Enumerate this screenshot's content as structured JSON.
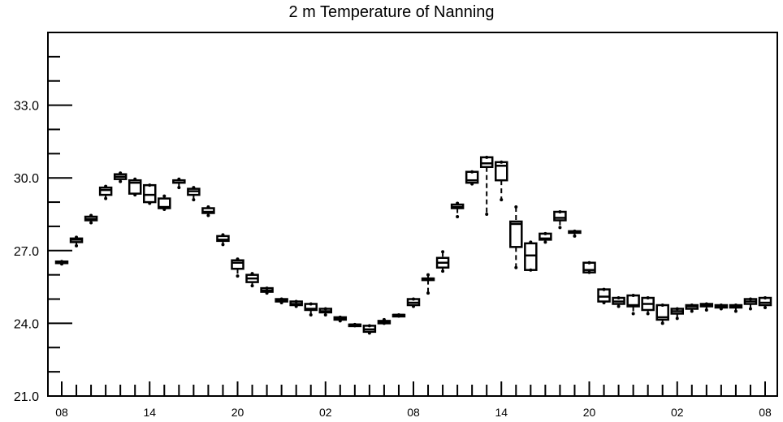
{
  "chart_data": {
    "type": "box",
    "title": "2 m Temperature of Nanning",
    "xlabel": "",
    "ylabel": "",
    "ylim": [
      21.0,
      36.0
    ],
    "yticks": [
      21.0,
      24.0,
      27.0,
      30.0,
      33.0
    ],
    "ytick_labels": [
      "21.0",
      "24.0",
      "27.0",
      "30.0",
      "33.0"
    ],
    "xtick_labels": [
      "08",
      "14",
      "20",
      "02",
      "08",
      "14",
      "20",
      "02",
      "08"
    ],
    "grid": false,
    "boxes": [
      {
        "hour": 0,
        "min": 26.45,
        "q1": 26.5,
        "median": 26.5,
        "q3": 26.55,
        "max": 26.55
      },
      {
        "hour": 1,
        "min": 27.2,
        "q1": 27.35,
        "median": 27.45,
        "q3": 27.5,
        "max": 27.55
      },
      {
        "hour": 2,
        "min": 28.15,
        "q1": 28.25,
        "median": 28.3,
        "q3": 28.4,
        "max": 28.45
      },
      {
        "hour": 3,
        "min": 29.15,
        "q1": 29.3,
        "median": 29.5,
        "q3": 29.6,
        "max": 29.65
      },
      {
        "hour": 4,
        "min": 29.85,
        "q1": 29.95,
        "median": 30.05,
        "q3": 30.15,
        "max": 30.2
      },
      {
        "hour": 5,
        "min": 29.3,
        "q1": 29.35,
        "median": 29.8,
        "q3": 29.9,
        "max": 29.95
      },
      {
        "hour": 6,
        "min": 28.95,
        "q1": 29.0,
        "median": 29.3,
        "q3": 29.7,
        "max": 29.7
      },
      {
        "hour": 7,
        "min": 28.7,
        "q1": 28.75,
        "median": 28.8,
        "q3": 29.15,
        "max": 29.25
      },
      {
        "hour": 8,
        "min": 29.6,
        "q1": 29.8,
        "median": 29.9,
        "q3": 29.9,
        "max": 29.95
      },
      {
        "hour": 9,
        "min": 29.1,
        "q1": 29.3,
        "median": 29.45,
        "q3": 29.55,
        "max": 29.6
      },
      {
        "hour": 10,
        "min": 28.45,
        "q1": 28.55,
        "median": 28.6,
        "q3": 28.75,
        "max": 28.8
      },
      {
        "hour": 11,
        "min": 27.25,
        "q1": 27.4,
        "median": 27.45,
        "q3": 27.6,
        "max": 27.65
      },
      {
        "hour": 12,
        "min": 25.95,
        "q1": 26.25,
        "median": 26.5,
        "q3": 26.6,
        "max": 26.65
      },
      {
        "hour": 13,
        "min": 25.55,
        "q1": 25.7,
        "median": 25.85,
        "q3": 26.0,
        "max": 26.05
      },
      {
        "hour": 14,
        "min": 25.25,
        "q1": 25.3,
        "median": 25.35,
        "q3": 25.45,
        "max": 25.45
      },
      {
        "hour": 15,
        "min": 24.85,
        "q1": 24.9,
        "median": 24.95,
        "q3": 25.0,
        "max": 25.0
      },
      {
        "hour": 16,
        "min": 24.7,
        "q1": 24.75,
        "median": 24.8,
        "q3": 24.9,
        "max": 24.9
      },
      {
        "hour": 17,
        "min": 24.35,
        "q1": 24.55,
        "median": 24.6,
        "q3": 24.8,
        "max": 24.8
      },
      {
        "hour": 18,
        "min": 24.35,
        "q1": 24.45,
        "median": 24.5,
        "q3": 24.6,
        "max": 24.6
      },
      {
        "hour": 19,
        "min": 24.1,
        "q1": 24.15,
        "median": 24.2,
        "q3": 24.25,
        "max": 24.25
      },
      {
        "hour": 20,
        "min": 23.9,
        "q1": 23.9,
        "median": 23.95,
        "q3": 23.95,
        "max": 23.95
      },
      {
        "hour": 21,
        "min": 23.6,
        "q1": 23.65,
        "median": 23.75,
        "q3": 23.9,
        "max": 23.9
      },
      {
        "hour": 22,
        "min": 24.0,
        "q1": 24.0,
        "median": 24.05,
        "q3": 24.1,
        "max": 24.15
      },
      {
        "hour": 23,
        "min": 24.3,
        "q1": 24.3,
        "median": 24.35,
        "q3": 24.35,
        "max": 24.35
      },
      {
        "hour": 24,
        "min": 24.7,
        "q1": 24.75,
        "median": 24.85,
        "q3": 25.0,
        "max": 25.0
      },
      {
        "hour": 25,
        "min": 25.25,
        "q1": 25.8,
        "median": 25.85,
        "q3": 25.85,
        "max": 26.0
      },
      {
        "hour": 26,
        "min": 26.15,
        "q1": 26.3,
        "median": 26.5,
        "q3": 26.7,
        "max": 26.95
      },
      {
        "hour": 27,
        "min": 28.4,
        "q1": 28.75,
        "median": 28.8,
        "q3": 28.9,
        "max": 28.95
      },
      {
        "hour": 28,
        "min": 29.75,
        "q1": 29.8,
        "median": 29.9,
        "q3": 30.25,
        "max": 30.25
      },
      {
        "hour": 29,
        "min": 28.5,
        "q1": 30.45,
        "median": 30.6,
        "q3": 30.85,
        "max": 30.85
      },
      {
        "hour": 30,
        "min": 29.1,
        "q1": 29.9,
        "median": 30.5,
        "q3": 30.65,
        "max": 30.65
      },
      {
        "hour": 31,
        "min": 26.3,
        "q1": 27.15,
        "median": 28.1,
        "q3": 28.2,
        "max": 28.8
      },
      {
        "hour": 32,
        "min": 26.2,
        "q1": 26.2,
        "median": 26.8,
        "q3": 27.3,
        "max": 27.35
      },
      {
        "hour": 33,
        "min": 27.35,
        "q1": 27.45,
        "median": 27.5,
        "q3": 27.7,
        "max": 27.7
      },
      {
        "hour": 34,
        "min": 27.95,
        "q1": 28.25,
        "median": 28.35,
        "q3": 28.6,
        "max": 28.6
      },
      {
        "hour": 35,
        "min": 27.6,
        "q1": 27.75,
        "median": 27.75,
        "q3": 27.8,
        "max": 27.8
      },
      {
        "hour": 36,
        "min": 26.1,
        "q1": 26.1,
        "median": 26.2,
        "q3": 26.5,
        "max": 26.5
      },
      {
        "hour": 37,
        "min": 24.85,
        "q1": 24.9,
        "median": 25.1,
        "q3": 25.4,
        "max": 25.4
      },
      {
        "hour": 38,
        "min": 24.7,
        "q1": 24.8,
        "median": 24.9,
        "q3": 25.05,
        "max": 25.05
      },
      {
        "hour": 39,
        "min": 24.4,
        "q1": 24.7,
        "median": 24.75,
        "q3": 25.15,
        "max": 25.15
      },
      {
        "hour": 40,
        "min": 24.4,
        "q1": 24.55,
        "median": 24.8,
        "q3": 25.05,
        "max": 25.05
      },
      {
        "hour": 41,
        "min": 24.0,
        "q1": 24.15,
        "median": 24.25,
        "q3": 24.75,
        "max": 24.75
      },
      {
        "hour": 42,
        "min": 24.2,
        "q1": 24.4,
        "median": 24.5,
        "q3": 24.6,
        "max": 24.6
      },
      {
        "hour": 43,
        "min": 24.5,
        "q1": 24.6,
        "median": 24.7,
        "q3": 24.75,
        "max": 24.75
      },
      {
        "hour": 44,
        "min": 24.55,
        "q1": 24.7,
        "median": 24.75,
        "q3": 24.8,
        "max": 24.8
      },
      {
        "hour": 45,
        "min": 24.6,
        "q1": 24.65,
        "median": 24.7,
        "q3": 24.75,
        "max": 24.75
      },
      {
        "hour": 46,
        "min": 24.5,
        "q1": 24.65,
        "median": 24.7,
        "q3": 24.75,
        "max": 24.75
      },
      {
        "hour": 47,
        "min": 24.6,
        "q1": 24.8,
        "median": 24.9,
        "q3": 25.0,
        "max": 25.0
      },
      {
        "hour": 48,
        "min": 24.65,
        "q1": 24.75,
        "median": 24.85,
        "q3": 25.05,
        "max": 25.05
      }
    ]
  }
}
